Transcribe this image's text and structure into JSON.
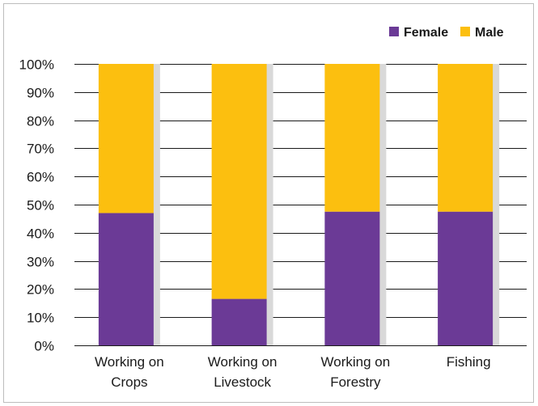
{
  "chart_data": {
    "type": "bar",
    "stacked": true,
    "title": "",
    "xlabel": "",
    "ylabel": "",
    "ylim": [
      0,
      100
    ],
    "y_tick_format": "percent",
    "y_ticks": [
      0,
      10,
      20,
      30,
      40,
      50,
      60,
      70,
      80,
      90,
      100
    ],
    "y_tick_labels": [
      "0%",
      "10%",
      "20%",
      "30%",
      "40%",
      "50%",
      "60%",
      "70%",
      "80%",
      "90%",
      "100%"
    ],
    "categories": [
      [
        "Working on",
        "Crops"
      ],
      [
        "Working on",
        "Livestock"
      ],
      [
        "Working on",
        "Forestry"
      ],
      [
        "Fishing"
      ]
    ],
    "series": [
      {
        "name": "Female",
        "color": "#6b3a96",
        "values": [
          47,
          16.5,
          47.5,
          47.5
        ]
      },
      {
        "name": "Male",
        "color": "#fcbf0f",
        "values": [
          53,
          83.5,
          52.5,
          52.5
        ]
      }
    ],
    "legend_position": "top-right",
    "grid": true
  }
}
